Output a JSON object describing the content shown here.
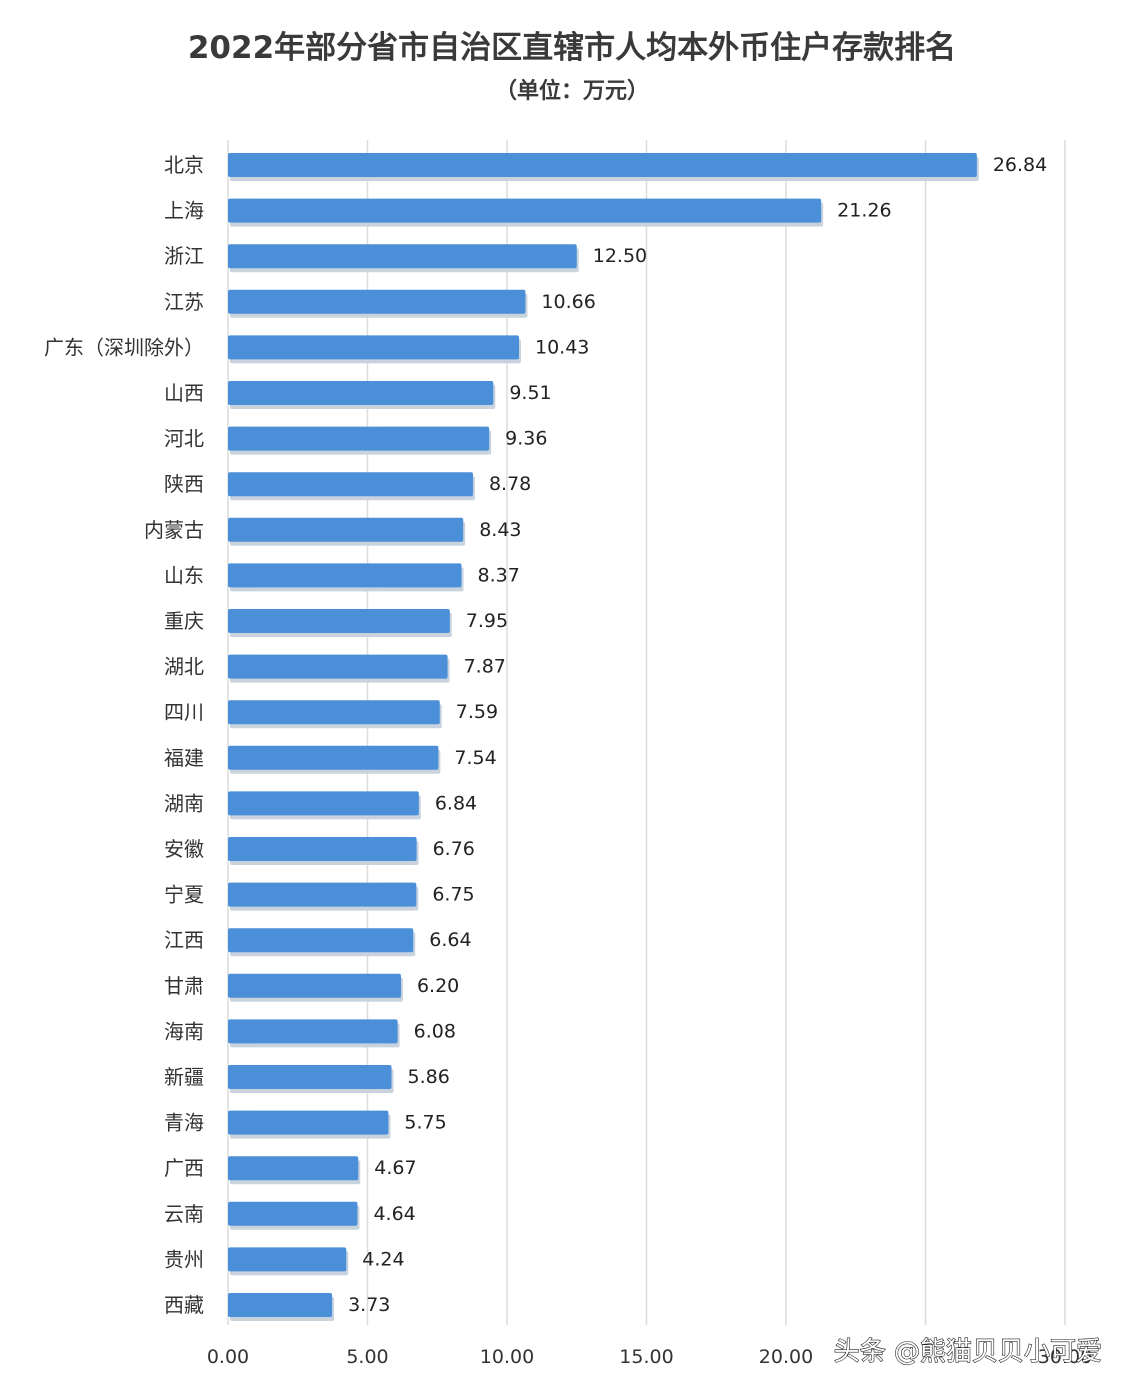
{
  "chart_data": {
    "type": "bar",
    "orientation": "horizontal",
    "title": "2022年部分省市自治区直辖市人均本外币住户存款排名",
    "subtitle": "（单位：万元）",
    "categories": [
      "北京",
      "上海",
      "浙江",
      "江苏",
      "广东（深圳除外）",
      "山西",
      "河北",
      "陕西",
      "内蒙古",
      "山东",
      "重庆",
      "湖北",
      "四川",
      "福建",
      "湖南",
      "安徽",
      "宁夏",
      "江西",
      "甘肃",
      "海南",
      "新疆",
      "青海",
      "广西",
      "云南",
      "贵州",
      "西藏"
    ],
    "values": [
      26.84,
      21.26,
      12.5,
      10.66,
      10.43,
      9.51,
      9.36,
      8.78,
      8.43,
      8.37,
      7.95,
      7.87,
      7.59,
      7.54,
      6.84,
      6.76,
      6.75,
      6.64,
      6.2,
      6.08,
      5.86,
      5.75,
      4.67,
      4.64,
      4.24,
      3.73
    ],
    "value_labels": [
      "26.84",
      "21.26",
      "12.50",
      "10.66",
      "10.43",
      "9.51",
      "9.36",
      "8.78",
      "8.43",
      "8.37",
      "7.95",
      "7.87",
      "7.59",
      "7.54",
      "6.84",
      "6.76",
      "6.75",
      "6.64",
      "6.20",
      "6.08",
      "5.86",
      "5.75",
      "4.67",
      "4.64",
      "4.24",
      "3.73"
    ],
    "xlim": [
      0,
      30
    ],
    "xticks": [
      0,
      5,
      10,
      15,
      20,
      25,
      30
    ],
    "xtick_labels": [
      "0.00",
      "5.00",
      "10.00",
      "15.00",
      "20.00",
      "",
      "30.00"
    ],
    "xlabel": "",
    "ylabel": "",
    "grid": true,
    "bar_color": "#4a8fd8",
    "bar_shadow_color": "#c9d3de",
    "grid_color": "#dcdcdc"
  },
  "watermark": "头条 @熊猫贝贝小可爱"
}
